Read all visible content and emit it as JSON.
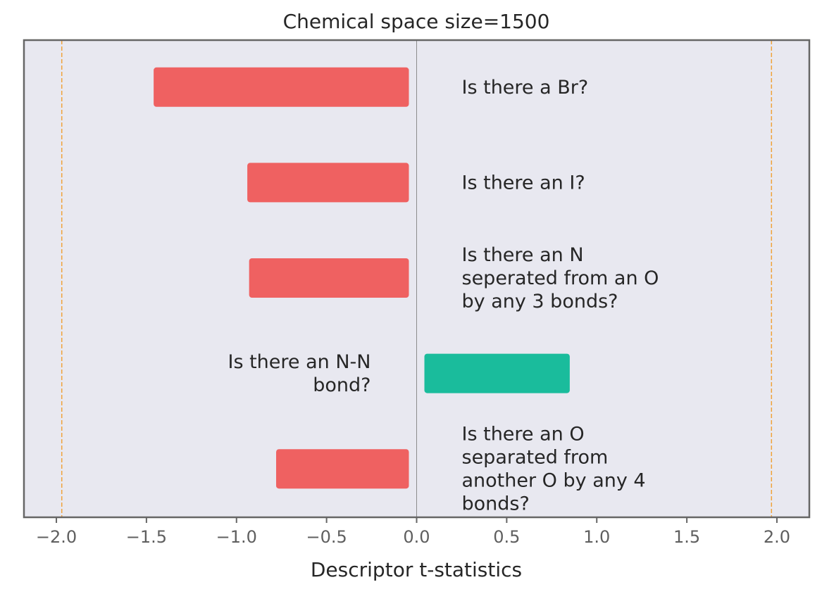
{
  "chart_data": {
    "type": "bar",
    "orientation": "horizontal",
    "title": "Chemical space size=1500",
    "xlabel": "Descriptor t-statistics",
    "ylabel": "",
    "xlim": [
      -2.18,
      2.18
    ],
    "grid": false,
    "threshold_lines": [
      -1.97,
      1.97
    ],
    "x_ticks": [
      -2.0,
      -1.5,
      -1.0,
      -0.5,
      0.0,
      0.5,
      1.0,
      1.5,
      2.0
    ],
    "x_tick_labels": [
      "−2.0",
      "−1.5",
      "−1.0",
      "−0.5",
      "0.0",
      "0.5",
      "1.0",
      "1.5",
      "2.0"
    ],
    "categories": [
      "Is there a Br?",
      "Is there an I?",
      "Is there an N seperated from an O by any 3 bonds?",
      "Is there an N-N bond?",
      "Is there an O separated from another O by any 4 bonds?"
    ],
    "values": [
      -1.46,
      -0.94,
      -0.93,
      0.85,
      -0.78
    ],
    "bar_labels": [
      [
        "Is there a Br?"
      ],
      [
        "Is there an I?"
      ],
      [
        "Is there an N",
        "seperated from an O",
        "by any 3 bonds?"
      ],
      [
        "Is there an N-N",
        "bond?"
      ],
      [
        "Is there an O",
        "separated from",
        "another O by any 4",
        "bonds?"
      ]
    ],
    "colors": {
      "negative": "#ef6161",
      "positive": "#1abc9c",
      "threshold": "#f0a33a",
      "zero_line": "#8c8c8c",
      "plot_background": "#e8e8f0",
      "frame": "#666666"
    }
  }
}
